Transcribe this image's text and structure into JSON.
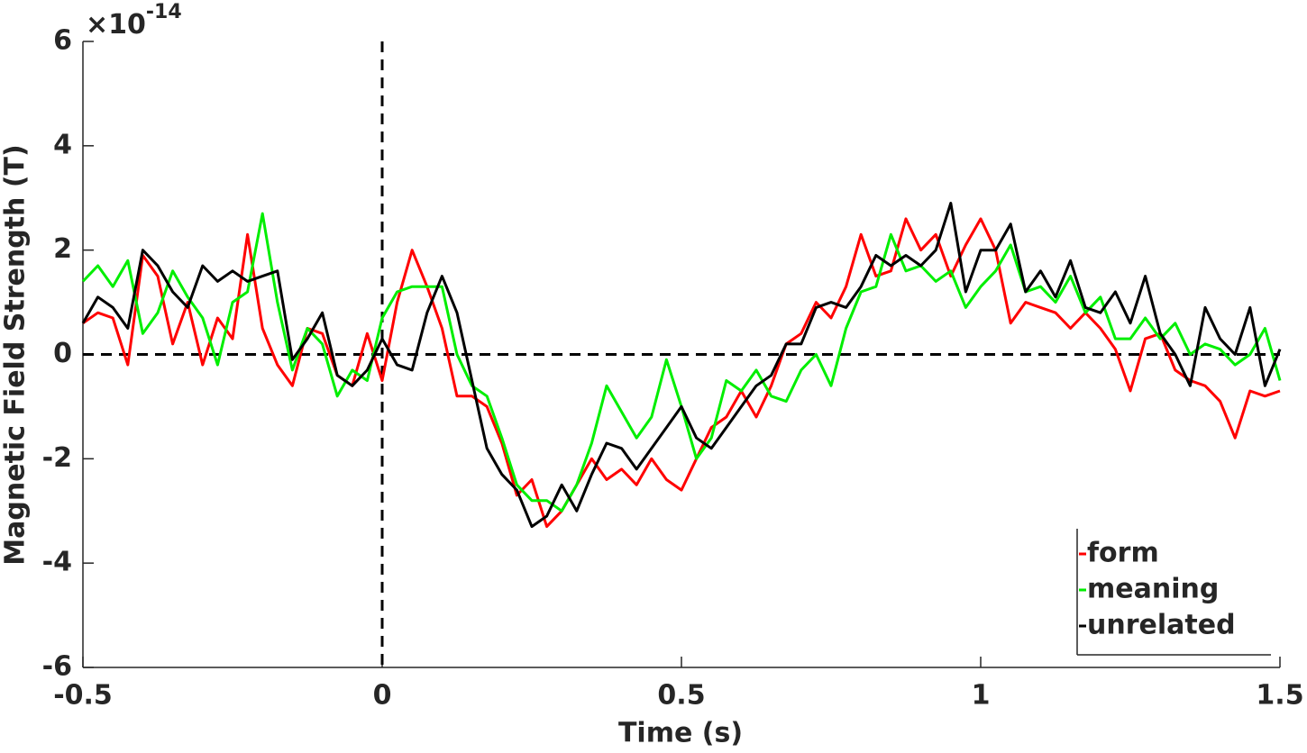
{
  "chart_data": {
    "type": "line",
    "xlabel": "Time (s)",
    "ylabel": "Magnetic Field Strength (T)",
    "y_multiplier": {
      "base": "×10",
      "exponent": "-14"
    },
    "xlim": [
      -0.5,
      1.5
    ],
    "ylim": [
      -6,
      6
    ],
    "xticks": [
      -0.5,
      0,
      0.5,
      1,
      1.5
    ],
    "yticks": [
      -6,
      -4,
      -2,
      0,
      2,
      4,
      6
    ],
    "reference_lines": {
      "x": 0,
      "y": 0
    },
    "legend_position": "lower right",
    "x": [
      -0.5,
      -0.475,
      -0.45,
      -0.425,
      -0.4,
      -0.375,
      -0.35,
      -0.325,
      -0.3,
      -0.275,
      -0.25,
      -0.225,
      -0.2,
      -0.175,
      -0.15,
      -0.125,
      -0.1,
      -0.075,
      -0.05,
      -0.025,
      0,
      0.025,
      0.05,
      0.075,
      0.1,
      0.125,
      0.15,
      0.175,
      0.2,
      0.225,
      0.25,
      0.275,
      0.3,
      0.325,
      0.35,
      0.375,
      0.4,
      0.425,
      0.45,
      0.475,
      0.5,
      0.525,
      0.55,
      0.575,
      0.6,
      0.625,
      0.65,
      0.675,
      0.7,
      0.725,
      0.75,
      0.775,
      0.8,
      0.825,
      0.85,
      0.875,
      0.9,
      0.925,
      0.95,
      0.975,
      1,
      1.025,
      1.05,
      1.075,
      1.1,
      1.125,
      1.15,
      1.175,
      1.2,
      1.225,
      1.25,
      1.275,
      1.3,
      1.325,
      1.35,
      1.375,
      1.4,
      1.425,
      1.45,
      1.475,
      1.5
    ],
    "series": [
      {
        "name": "form",
        "color": "#ff0000",
        "values": [
          0.6,
          0.8,
          0.7,
          -0.2,
          1.9,
          1.5,
          0.2,
          1.0,
          -0.2,
          0.7,
          0.3,
          2.3,
          0.5,
          -0.2,
          -0.6,
          0.5,
          0.4,
          -0.4,
          -0.6,
          0.4,
          -0.5,
          1.0,
          2.0,
          1.3,
          0.5,
          -0.8,
          -0.8,
          -1.0,
          -1.7,
          -2.7,
          -2.4,
          -3.3,
          -3.0,
          -2.5,
          -2.0,
          -2.4,
          -2.2,
          -2.5,
          -2.0,
          -2.4,
          -2.6,
          -2.0,
          -1.4,
          -1.2,
          -0.7,
          -1.2,
          -0.6,
          0.2,
          0.4,
          1.0,
          0.7,
          1.3,
          2.3,
          1.5,
          1.6,
          2.6,
          2.0,
          2.3,
          1.5,
          2.1,
          2.6,
          2.0,
          0.6,
          1.0,
          0.9,
          0.8,
          0.5,
          0.8,
          0.5,
          0.1,
          -0.7,
          0.3,
          0.4,
          -0.3,
          -0.5,
          -0.6,
          -0.9,
          -1.6,
          -0.7,
          -0.8,
          -0.7
        ]
      },
      {
        "name": "meaning",
        "color": "#00ee00",
        "values": [
          1.4,
          1.7,
          1.3,
          1.8,
          0.4,
          0.8,
          1.6,
          1.1,
          0.7,
          -0.2,
          1.0,
          1.2,
          2.7,
          1.0,
          -0.3,
          0.5,
          0.2,
          -0.8,
          -0.3,
          -0.5,
          0.7,
          1.2,
          1.3,
          1.3,
          1.3,
          0.0,
          -0.6,
          -0.8,
          -1.6,
          -2.5,
          -2.8,
          -2.8,
          -3.0,
          -2.5,
          -1.7,
          -0.6,
          -1.1,
          -1.6,
          -1.2,
          -0.1,
          -1.0,
          -2.0,
          -1.6,
          -0.5,
          -0.7,
          -0.3,
          -0.8,
          -0.9,
          -0.3,
          0.0,
          -0.6,
          0.5,
          1.2,
          1.3,
          2.3,
          1.6,
          1.7,
          1.4,
          1.6,
          0.9,
          1.3,
          1.6,
          2.1,
          1.2,
          1.3,
          1.0,
          1.5,
          0.8,
          1.1,
          0.3,
          0.3,
          0.7,
          0.3,
          0.6,
          0.0,
          0.2,
          0.1,
          -0.2,
          0.0,
          0.5,
          -0.5
        ]
      },
      {
        "name": "unrelated",
        "color": "#000000",
        "values": [
          0.6,
          1.1,
          0.9,
          0.5,
          2.0,
          1.7,
          1.2,
          0.9,
          1.7,
          1.4,
          1.6,
          1.4,
          1.5,
          1.6,
          -0.1,
          0.3,
          0.8,
          -0.4,
          -0.6,
          -0.3,
          0.3,
          -0.2,
          -0.3,
          0.8,
          1.5,
          0.8,
          -0.5,
          -1.8,
          -2.3,
          -2.6,
          -3.3,
          -3.1,
          -2.5,
          -3.0,
          -2.3,
          -1.7,
          -1.8,
          -2.2,
          -1.8,
          -1.4,
          -1.0,
          -1.6,
          -1.8,
          -1.4,
          -1.0,
          -0.6,
          -0.4,
          0.2,
          0.2,
          0.9,
          1.0,
          0.9,
          1.3,
          1.9,
          1.7,
          1.9,
          1.7,
          2.0,
          2.9,
          1.2,
          2.0,
          2.0,
          2.5,
          1.2,
          1.6,
          1.1,
          1.8,
          0.9,
          0.8,
          1.2,
          0.6,
          1.5,
          0.4,
          0.0,
          -0.6,
          0.9,
          0.3,
          0.0,
          0.9,
          -0.6,
          0.1
        ]
      }
    ]
  }
}
